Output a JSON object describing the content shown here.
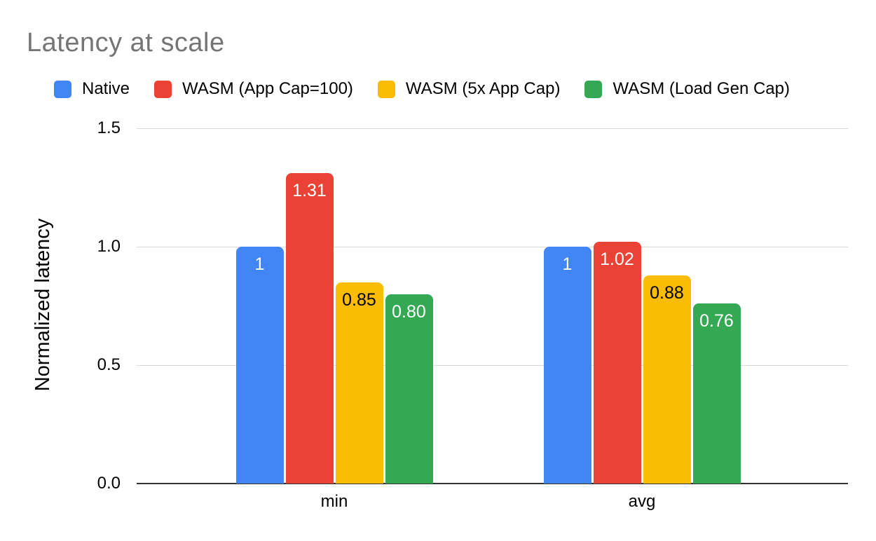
{
  "chart_data": {
    "type": "bar",
    "title": "Latency at scale",
    "categories": [
      "min",
      "avg"
    ],
    "series": [
      {
        "name": "Native",
        "color": "#4285F4",
        "label_color": "#ffffff",
        "values": [
          1.0,
          1.0
        ],
        "labels": [
          "1",
          "1"
        ]
      },
      {
        "name": "WASM (App Cap=100)",
        "color": "#EA4335",
        "label_color": "#ffffff",
        "values": [
          1.31,
          1.02
        ],
        "labels": [
          "1.31",
          "1.02"
        ]
      },
      {
        "name": "WASM (5x App Cap)",
        "color": "#FBBC04",
        "label_color": "#000000",
        "values": [
          0.85,
          0.88
        ],
        "labels": [
          "0.85",
          "0.88"
        ]
      },
      {
        "name": "WASM (Load Gen Cap)",
        "color": "#34A853",
        "label_color": "#ffffff",
        "values": [
          0.8,
          0.76
        ],
        "labels": [
          "0.80",
          "0.76"
        ]
      }
    ],
    "xlabel": "",
    "ylabel": "Normalized latency",
    "ylim": [
      0,
      1.5
    ],
    "yticks": [
      "0.0",
      "0.5",
      "1.0",
      "1.5"
    ],
    "grid": true,
    "legend_position": "top",
    "background": "#ffffff"
  }
}
